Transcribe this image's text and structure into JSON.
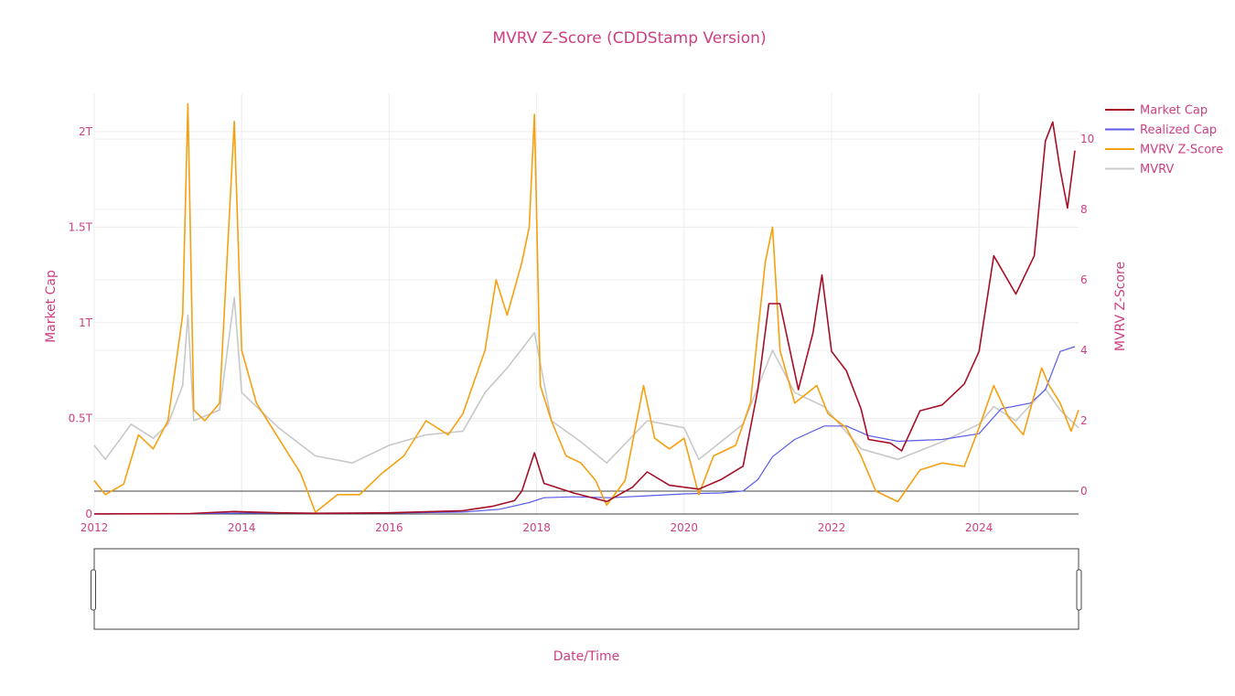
{
  "chart_data": {
    "type": "line",
    "title": "MVRV Z-Score (CDDStamp Version)",
    "xlabel": "Date/Time",
    "ylabel_left": "Market Cap",
    "ylabel_right": "MVRV Z-Score",
    "xlim": [
      2012.0,
      2025.35
    ],
    "ylim_left": [
      0,
      2200000000000.0
    ],
    "ylim_right": [
      -0.65,
      11.3
    ],
    "x_ticks": [
      "2012",
      "2014",
      "2016",
      "2018",
      "2020",
      "2022",
      "2024"
    ],
    "y_left_ticks": [
      {
        "value": 0,
        "label": "0"
      },
      {
        "value": 500000000000.0,
        "label": "0.5T"
      },
      {
        "value": 1000000000000.0,
        "label": "1T"
      },
      {
        "value": 1500000000000.0,
        "label": "1.5T"
      },
      {
        "value": 2000000000000.0,
        "label": "2T"
      }
    ],
    "y_right_ticks": [
      {
        "value": 0,
        "label": "0"
      },
      {
        "value": 2,
        "label": "2"
      },
      {
        "value": 4,
        "label": "4"
      },
      {
        "value": 6,
        "label": "6"
      },
      {
        "value": 8,
        "label": "8"
      },
      {
        "value": 10,
        "label": "10"
      }
    ],
    "grid": true,
    "legend_position": "top-right",
    "range_slider": true,
    "series": [
      {
        "name": "Market Cap",
        "axis": "left",
        "color": "#a50f26",
        "x": [
          2012.0,
          2013.0,
          2013.3,
          2013.9,
          2014.5,
          2015.0,
          2016.0,
          2017.0,
          2017.4,
          2017.7,
          2017.8,
          2017.97,
          2018.1,
          2018.5,
          2018.95,
          2019.3,
          2019.5,
          2019.8,
          2020.2,
          2020.5,
          2020.8,
          2021.0,
          2021.15,
          2021.3,
          2021.55,
          2021.75,
          2021.87,
          2022.0,
          2022.2,
          2022.4,
          2022.5,
          2022.8,
          2022.95,
          2023.2,
          2023.5,
          2023.8,
          2024.0,
          2024.2,
          2024.5,
          2024.75,
          2024.9,
          2025.0,
          2025.1,
          2025.2,
          2025.3
        ],
        "values": [
          500000000.0,
          1500000000.0,
          2500000000.0,
          13000000000.0,
          6000000000.0,
          3500000000.0,
          6000000000.0,
          17000000000.0,
          40000000000.0,
          70000000000.0,
          120000000000.0,
          320000000000.0,
          160000000000.0,
          110000000000.0,
          65000000000.0,
          140000000000.0,
          220000000000.0,
          150000000000.0,
          130000000000.0,
          180000000000.0,
          250000000000.0,
          650000000000.0,
          1100000000000.0,
          1100000000000.0,
          650000000000.0,
          950000000000.0,
          1250000000000.0,
          850000000000.0,
          750000000000.0,
          550000000000.0,
          390000000000.0,
          370000000000.0,
          330000000000.0,
          540000000000.0,
          570000000000.0,
          680000000000.0,
          850000000000.0,
          1350000000000.0,
          1150000000000.0,
          1350000000000.0,
          1950000000000.0,
          2050000000000.0,
          1800000000000.0,
          1600000000000.0,
          1900000000000.0
        ]
      },
      {
        "name": "Realized Cap",
        "axis": "left",
        "color": "#5b5be8",
        "x": [
          2012.0,
          2013.0,
          2014.0,
          2016.0,
          2017.0,
          2017.5,
          2017.9,
          2018.1,
          2018.5,
          2019.0,
          2019.5,
          2020.0,
          2020.5,
          2020.8,
          2021.0,
          2021.2,
          2021.5,
          2021.9,
          2022.2,
          2022.5,
          2022.9,
          2023.5,
          2024.0,
          2024.3,
          2024.7,
          2024.9,
          2025.1,
          2025.3
        ],
        "values": [
          200000000.0,
          1000000000.0,
          5000000000.0,
          5000000000.0,
          10000000000.0,
          25000000000.0,
          60000000000.0,
          85000000000.0,
          90000000000.0,
          85000000000.0,
          95000000000.0,
          105000000000.0,
          110000000000.0,
          120000000000.0,
          180000000000.0,
          300000000000.0,
          390000000000.0,
          460000000000.0,
          460000000000.0,
          410000000000.0,
          380000000000.0,
          390000000000.0,
          420000000000.0,
          550000000000.0,
          580000000000.0,
          650000000000.0,
          850000000000.0,
          875000000000.0
        ]
      },
      {
        "name": "MVRV Z-Score",
        "axis": "right",
        "color": "#f5a00f",
        "x": [
          2012.0,
          2012.15,
          2012.4,
          2012.6,
          2012.8,
          2013.0,
          2013.2,
          2013.27,
          2013.35,
          2013.5,
          2013.7,
          2013.9,
          2014.0,
          2014.2,
          2014.5,
          2014.8,
          2015.0,
          2015.3,
          2015.6,
          2015.9,
          2016.2,
          2016.5,
          2016.8,
          2017.0,
          2017.3,
          2017.45,
          2017.6,
          2017.8,
          2017.9,
          2017.97,
          2018.05,
          2018.2,
          2018.4,
          2018.6,
          2018.8,
          2018.95,
          2019.2,
          2019.45,
          2019.6,
          2019.8,
          2020.0,
          2020.2,
          2020.4,
          2020.7,
          2020.9,
          2021.1,
          2021.2,
          2021.3,
          2021.5,
          2021.8,
          2021.95,
          2022.2,
          2022.4,
          2022.6,
          2022.9,
          2023.2,
          2023.5,
          2023.8,
          2024.0,
          2024.2,
          2024.4,
          2024.6,
          2024.85,
          2024.95,
          2025.1,
          2025.25,
          2025.35
        ],
        "values": [
          0.3,
          -0.1,
          0.2,
          1.6,
          1.2,
          2.0,
          5.0,
          11.0,
          2.3,
          2.0,
          2.5,
          10.5,
          4.0,
          2.5,
          1.5,
          0.5,
          -0.6,
          -0.1,
          -0.1,
          0.5,
          1.0,
          2.0,
          1.6,
          2.2,
          4.0,
          6.0,
          5.0,
          6.5,
          7.5,
          10.7,
          3.0,
          2.0,
          1.0,
          0.8,
          0.3,
          -0.4,
          0.3,
          3.0,
          1.5,
          1.2,
          1.5,
          -0.1,
          1.0,
          1.3,
          2.5,
          6.5,
          7.5,
          4.0,
          2.5,
          3.0,
          2.2,
          1.8,
          1.0,
          0.0,
          -0.3,
          0.6,
          0.8,
          0.7,
          1.8,
          3.0,
          2.1,
          1.6,
          3.5,
          3.0,
          2.5,
          1.7,
          2.3
        ]
      },
      {
        "name": "MVRV",
        "axis": "right",
        "color": "#c8c8c8",
        "x": [
          2012.0,
          2012.15,
          2012.5,
          2012.8,
          2013.0,
          2013.2,
          2013.27,
          2013.35,
          2013.7,
          2013.9,
          2014.0,
          2014.5,
          2015.0,
          2015.5,
          2016.0,
          2016.5,
          2017.0,
          2017.3,
          2017.6,
          2017.97,
          2018.2,
          2018.6,
          2018.95,
          2019.5,
          2020.0,
          2020.2,
          2020.8,
          2021.2,
          2021.5,
          2021.9,
          2022.4,
          2022.9,
          2023.5,
          2024.0,
          2024.2,
          2024.5,
          2024.9,
          2025.1,
          2025.35
        ],
        "values": [
          1.3,
          0.9,
          1.9,
          1.5,
          1.9,
          3.0,
          5.0,
          2.0,
          2.3,
          5.5,
          2.8,
          1.8,
          1.0,
          0.8,
          1.3,
          1.6,
          1.7,
          2.8,
          3.5,
          4.5,
          2.0,
          1.4,
          0.8,
          2.0,
          1.8,
          0.9,
          1.9,
          4.0,
          2.8,
          2.4,
          1.2,
          0.9,
          1.4,
          1.9,
          2.4,
          2.0,
          2.9,
          2.3,
          1.8
        ]
      }
    ]
  }
}
